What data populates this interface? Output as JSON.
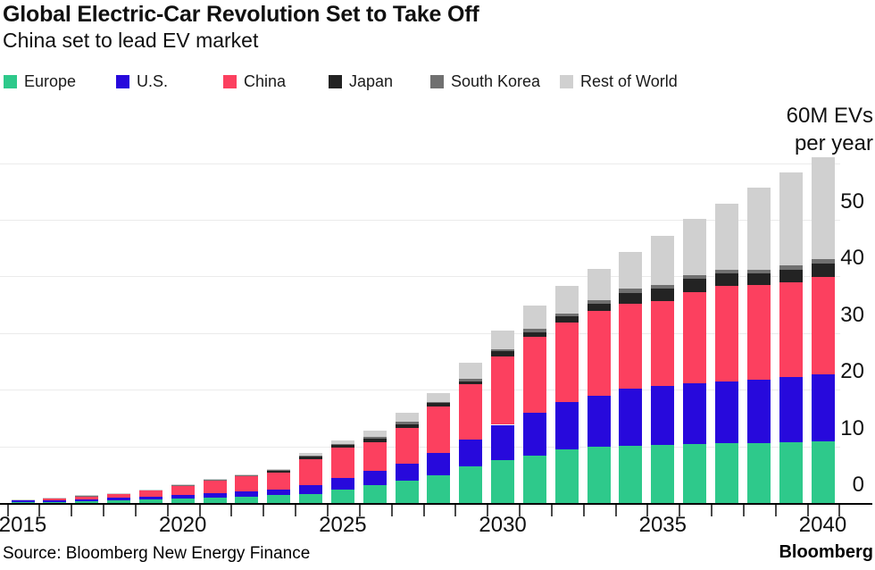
{
  "header": {
    "title": "Global Electric-Car Revolution Set to Take Off",
    "subtitle": "China set to lead EV market"
  },
  "chart_data": {
    "type": "bar",
    "stacked": true,
    "title": "Global Electric-Car Revolution Set to Take Off",
    "subtitle": "China set to lead EV market",
    "unit_label_line1": "60M EVs",
    "unit_label_line2": "per year",
    "x": [
      2015,
      2016,
      2017,
      2018,
      2019,
      2020,
      2021,
      2022,
      2023,
      2024,
      2025,
      2026,
      2027,
      2028,
      2029,
      2030,
      2031,
      2032,
      2033,
      2034,
      2035,
      2036,
      2037,
      2038,
      2039,
      2040
    ],
    "x_tick_labels": [
      "2015",
      "2020",
      "2025",
      "2030",
      "2035",
      "2040"
    ],
    "y_ticks": [
      0,
      10,
      20,
      30,
      40,
      50
    ],
    "ylim": [
      0,
      60
    ],
    "grid": true,
    "legend_position": "top",
    "series": [
      {
        "name": "Europe",
        "color": "#2ec98b",
        "values": [
          0.15,
          0.2,
          0.3,
          0.5,
          0.65,
          0.8,
          0.95,
          1.15,
          1.35,
          1.65,
          2.4,
          3.1,
          3.9,
          4.9,
          6.4,
          7.6,
          8.4,
          9.5,
          10.0,
          10.1,
          10.2,
          10.4,
          10.5,
          10.6,
          10.7,
          10.9
        ]
      },
      {
        "name": "U.S.",
        "color": "#2709dc",
        "values": [
          0.25,
          0.3,
          0.35,
          0.45,
          0.5,
          0.6,
          0.8,
          0.95,
          0.95,
          1.45,
          2.05,
          2.5,
          3.1,
          4.0,
          4.8,
          6.2,
          7.5,
          8.4,
          8.9,
          10.1,
          10.5,
          10.7,
          10.9,
          11.2,
          11.5,
          11.8
        ]
      },
      {
        "name": "China",
        "color": "#fc405f",
        "values": [
          0.25,
          0.35,
          0.6,
          0.7,
          1.1,
          1.6,
          2.2,
          2.65,
          3.1,
          4.7,
          5.3,
          5.2,
          6.2,
          8.1,
          9.8,
          12.1,
          13.4,
          13.9,
          15.0,
          15.0,
          15.0,
          16.2,
          17.0,
          16.7,
          16.7,
          17.2
        ]
      },
      {
        "name": "Japan",
        "color": "#232323",
        "values": [
          0.02,
          0.02,
          0.03,
          0.05,
          0.06,
          0.08,
          0.1,
          0.12,
          0.35,
          0.4,
          0.45,
          0.5,
          0.7,
          0.6,
          0.5,
          0.9,
          0.9,
          1.1,
          1.3,
          1.9,
          2.1,
          2.3,
          2.1,
          2.0,
          2.3,
          2.4
        ]
      },
      {
        "name": "South Korea",
        "color": "#707070",
        "values": [
          0.01,
          0.01,
          0.02,
          0.02,
          0.03,
          0.04,
          0.05,
          0.06,
          0.1,
          0.15,
          0.15,
          0.3,
          0.4,
          0.3,
          0.4,
          0.4,
          0.6,
          0.5,
          0.6,
          0.8,
          0.7,
          0.6,
          0.6,
          0.7,
          0.8,
          0.8
        ]
      },
      {
        "name": "Rest of World",
        "color": "#d0d0d0",
        "values": [
          0.02,
          0.02,
          0.05,
          0.08,
          0.06,
          0.18,
          0.1,
          0.17,
          0.2,
          0.45,
          0.65,
          1.1,
          1.7,
          1.5,
          2.9,
          3.2,
          4.1,
          5.0,
          5.5,
          6.5,
          8.6,
          9.9,
          11.8,
          14.5,
          16.4,
          17.9
        ]
      }
    ]
  },
  "legend": {
    "items": [
      {
        "label": "Europe",
        "color": "#2ec98b"
      },
      {
        "label": "U.S.",
        "color": "#2709dc"
      },
      {
        "label": "China",
        "color": "#fc405f"
      },
      {
        "label": "Japan",
        "color": "#232323"
      },
      {
        "label": "South Korea",
        "color": "#707070"
      },
      {
        "label": "Rest of World",
        "color": "#d0d0d0"
      }
    ]
  },
  "footer": {
    "source": "Source: Bloomberg New Energy Finance",
    "brand": "Bloomberg"
  }
}
